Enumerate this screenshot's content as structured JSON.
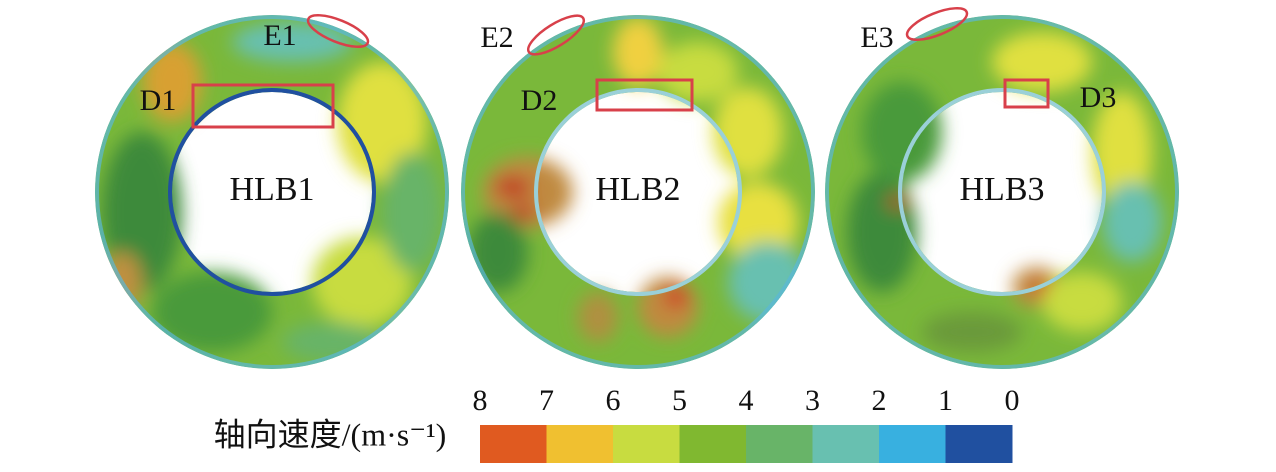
{
  "panels": [
    {
      "label": "HLB1",
      "inlet_label": "E1",
      "detail_label": "D1"
    },
    {
      "label": "HLB2",
      "inlet_label": "E2",
      "detail_label": "D2"
    },
    {
      "label": "HLB3",
      "inlet_label": "E3",
      "detail_label": "D3"
    }
  ],
  "colorbar": {
    "title": "轴向速度/(m·s⁻¹)",
    "ticks": [
      8,
      7,
      6,
      5,
      4,
      3,
      2,
      1,
      0
    ],
    "colors": [
      "#e05a20",
      "#f0c030",
      "#c8dc40",
      "#80b830",
      "#68b468",
      "#68c0b0",
      "#38b0e0",
      "#2050a0"
    ]
  }
}
